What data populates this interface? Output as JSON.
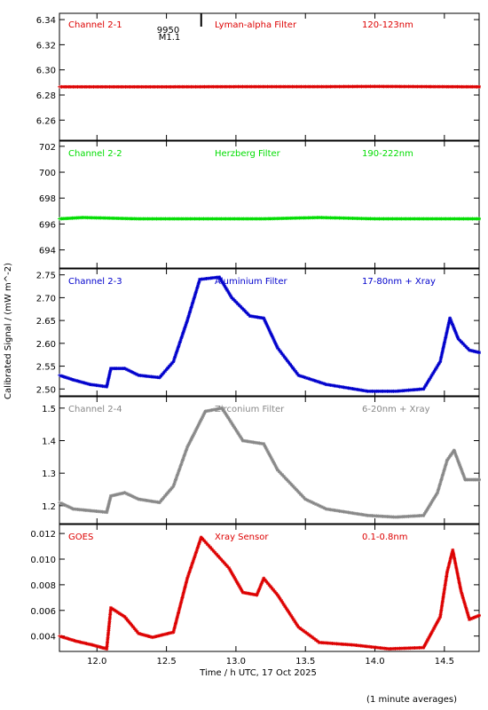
{
  "chart_data": {
    "type": "scatter",
    "xlabel": "Time / h UTC, 17 Oct 2025",
    "ylabel": "Calibrated Signal / (mW m^-2)",
    "footnote": "(1 minute averages)",
    "xlim": [
      11.73,
      14.75
    ],
    "xticks": [
      12.0,
      12.5,
      13.0,
      13.5,
      14.0,
      14.5
    ],
    "xticklabels": [
      "12.0",
      "12.5",
      "13.0",
      "13.5",
      "14.0",
      "14.5"
    ],
    "marker_annotation": {
      "x": 12.75,
      "lines": [
        "9950",
        "M1.1"
      ]
    },
    "panels": [
      {
        "id": "p1",
        "labels": [
          "Channel 2-1",
          "Lyman-alpha Filter",
          "120-123nm"
        ],
        "color": "#dd0000",
        "ylim": [
          6.244,
          6.345
        ],
        "yticks": [
          6.26,
          6.28,
          6.3,
          6.32,
          6.34
        ],
        "yticklabels": [
          "6.26",
          "6.28",
          "6.30",
          "6.32",
          "6.34"
        ],
        "series": [
          {
            "x": [
              11.73,
              12.5,
              13.0,
              13.6,
              14.0,
              14.5,
              14.75
            ],
            "y": [
              6.2865,
              6.2865,
              6.2866,
              6.2866,
              6.2868,
              6.2866,
              6.2865
            ]
          }
        ]
      },
      {
        "id": "p2",
        "labels": [
          "Channel 2-2",
          "Herzberg Filter",
          "190-222nm"
        ],
        "color": "#00dd00",
        "ylim": [
          692.6,
          702.4
        ],
        "yticks": [
          694,
          696,
          698,
          700,
          702
        ],
        "yticklabels": [
          "694",
          "696",
          "698",
          "700",
          "702"
        ],
        "series": [
          {
            "x": [
              11.73,
              11.9,
              12.3,
              12.8,
              13.2,
              13.6,
              14.0,
              14.4,
              14.75
            ],
            "y": [
              696.4,
              696.5,
              696.4,
              696.4,
              696.4,
              696.5,
              696.4,
              696.4,
              696.4
            ]
          }
        ]
      },
      {
        "id": "p3",
        "labels": [
          "Channel 2-3",
          "Aluminium Filter",
          "17-80nm + Xray"
        ],
        "color": "#0000cc",
        "ylim": [
          2.485,
          2.763
        ],
        "yticks": [
          2.5,
          2.55,
          2.6,
          2.65,
          2.7,
          2.75
        ],
        "yticklabels": [
          "2.50",
          "2.55",
          "2.60",
          "2.65",
          "2.70",
          "2.75"
        ],
        "series": [
          {
            "x": [
              11.73,
              11.83,
              11.95,
              12.07,
              12.1,
              12.2,
              12.3,
              12.45,
              12.55,
              12.65,
              12.74,
              12.88,
              12.97,
              13.1,
              13.2,
              13.3,
              13.45,
              13.65,
              13.95,
              14.15,
              14.35,
              14.47,
              14.54,
              14.6,
              14.68,
              14.75
            ],
            "y": [
              2.53,
              2.52,
              2.51,
              2.505,
              2.545,
              2.545,
              2.53,
              2.525,
              2.56,
              2.65,
              2.74,
              2.745,
              2.7,
              2.66,
              2.655,
              2.59,
              2.53,
              2.51,
              2.495,
              2.495,
              2.5,
              2.56,
              2.655,
              2.61,
              2.585,
              2.58
            ]
          }
        ]
      },
      {
        "id": "p4",
        "labels": [
          "Channel 2-4",
          "Zirconium Filter",
          "6-20nm + Xray"
        ],
        "color": "#888888",
        "ylim": [
          1.145,
          1.535
        ],
        "yticks": [
          1.2,
          1.3,
          1.4,
          1.5
        ],
        "yticklabels": [
          "1.2",
          "1.3",
          "1.4",
          "1.5"
        ],
        "series": [
          {
            "x": [
              11.73,
              11.83,
              11.95,
              12.07,
              12.1,
              12.2,
              12.3,
              12.45,
              12.55,
              12.65,
              12.78,
              12.9,
              13.05,
              13.2,
              13.3,
              13.5,
              13.65,
              13.95,
              14.15,
              14.35,
              14.45,
              14.52,
              14.57,
              14.65,
              14.75
            ],
            "y": [
              1.21,
              1.19,
              1.185,
              1.18,
              1.23,
              1.24,
              1.22,
              1.21,
              1.26,
              1.38,
              1.49,
              1.5,
              1.4,
              1.39,
              1.31,
              1.22,
              1.19,
              1.17,
              1.165,
              1.17,
              1.24,
              1.34,
              1.37,
              1.28,
              1.28
            ]
          }
        ]
      },
      {
        "id": "p5",
        "labels": [
          "GOES",
          "Xray Sensor",
          "0.1-0.8nm"
        ],
        "color": "#dd0000",
        "ylim": [
          0.0028,
          0.0127
        ],
        "yticks": [
          0.004,
          0.006,
          0.008,
          0.01,
          0.012
        ],
        "yticklabels": [
          "0.004",
          "0.006",
          "0.008",
          "0.010",
          "0.012"
        ],
        "series": [
          {
            "x": [
              11.73,
              11.85,
              11.97,
              12.07,
              12.1,
              12.2,
              12.3,
              12.4,
              12.55,
              12.65,
              12.75,
              12.85,
              12.95,
              13.05,
              13.15,
              13.2,
              13.3,
              13.45,
              13.6,
              13.85,
              14.1,
              14.35,
              14.47,
              14.52,
              14.56,
              14.62,
              14.68,
              14.75
            ],
            "y": [
              0.004,
              0.0036,
              0.0033,
              0.003,
              0.0062,
              0.0055,
              0.0042,
              0.0039,
              0.0043,
              0.0085,
              0.0117,
              0.0105,
              0.0093,
              0.0074,
              0.0072,
              0.0085,
              0.0072,
              0.0047,
              0.0035,
              0.0033,
              0.003,
              0.0031,
              0.0055,
              0.009,
              0.0107,
              0.0075,
              0.0053,
              0.0056
            ]
          }
        ]
      }
    ]
  }
}
